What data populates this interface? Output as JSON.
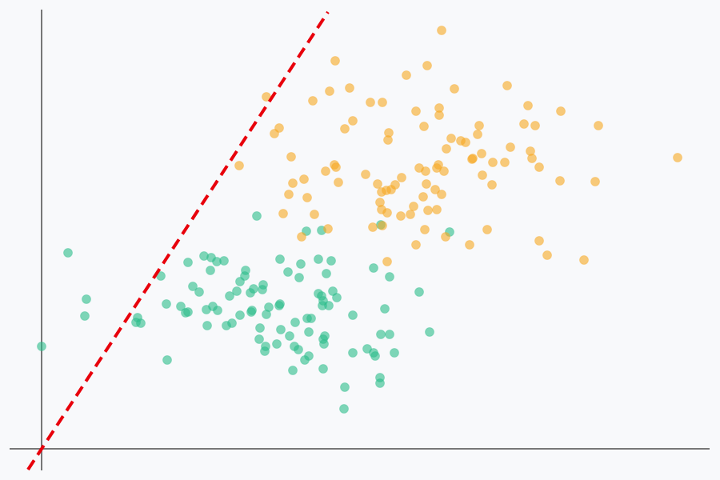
{
  "chart_data": {
    "type": "scatter",
    "xlim": [
      -40,
      835
    ],
    "ylim": [
      -27,
      549
    ],
    "series": [
      {
        "color": "#2bbd8a",
        "x": [
          0,
          33,
          56,
          54,
          120,
          118,
          124,
          157,
          149,
          156,
          174,
          180,
          183,
          183,
          189,
          197,
          203,
          212,
          219,
          228,
          211,
          206,
          214,
          220,
          207,
          231,
          238,
          235,
          244,
          248,
          254,
          255,
          261,
          265,
          276,
          277,
          262,
          263,
          248,
          269,
          273,
          272,
          280,
          279,
          284,
          281,
          297,
          298,
          298,
          294,
          299,
          308,
          310,
          316,
          321,
          322,
          324,
          317,
          314,
          329,
          334,
          334,
          332,
          337,
          331,
          350,
          346,
          356,
          362,
          346,
          350,
          351,
          352,
          359,
          364,
          369,
          354,
          353,
          352,
          352,
          389,
          379,
          378,
          389,
          407,
          415,
          417,
          424,
          435,
          441,
          423,
          423,
          415,
          435,
          429,
          424,
          472,
          485,
          510
        ],
        "values": [
          128,
          245,
          187,
          166,
          164,
          158,
          157,
          111,
          216,
          181,
          178,
          170,
          171,
          233,
          203,
          196,
          241,
          239,
          234,
          235,
          223,
          174,
          178,
          173,
          154,
          154,
          157,
          191,
          197,
          209,
          216,
          223,
          195,
          200,
          199,
          205,
          171,
          173,
          167,
          291,
          151,
          137,
          128,
          122,
          177,
          168,
          179,
          181,
          237,
          131,
          149,
          221,
          141,
          128,
          124,
          214,
          231,
          158,
          98,
          111,
          116,
          146,
          163,
          163,
          272,
          273,
          237,
          219,
          235,
          194,
          191,
          179,
          185,
          179,
          197,
          189,
          141,
          131,
          137,
          100,
          167,
          77,
          50,
          120,
          125,
          120,
          116,
          143,
          143,
          120,
          89,
          82,
          226,
          215,
          175,
          280,
          196,
          146,
          271
        ]
      },
      {
        "color": "#f7a823",
        "x": [
          500,
          482,
          367,
          456,
          360,
          385,
          339,
          281,
          411,
          426,
          468,
          497,
          497,
          516,
          582,
          608,
          649,
          603,
          617,
          696,
          795,
          389,
          379,
          297,
          291,
          434,
          433,
          478,
          547,
          545,
          512,
          524,
          530,
          506,
          550,
          586,
          611,
          613,
          622,
          579,
          564,
          538,
          551,
          563,
          648,
          692,
          247,
          312,
          366,
          368,
          355,
          405,
          328,
          314,
          371,
          309,
          332,
          420,
          425,
          431,
          437,
          442,
          450,
          472,
          480,
          494,
          496,
          503,
          481,
          492,
          500,
          477,
          465,
          461,
          449,
          432,
          425,
          423,
          494,
          483,
          341,
          302,
          358,
          325,
          414,
          426,
          479,
          505,
          468,
          535,
          557,
          432,
          622,
          632,
          678,
          539
        ],
        "values": [
          523,
          479,
          485,
          467,
          447,
          451,
          435,
          440,
          433,
          433,
          422,
          426,
          417,
          450,
          454,
          429,
          422,
          406,
          404,
          404,
          364,
          410,
          400,
          401,
          394,
          395,
          386,
          403,
          404,
          393,
          388,
          385,
          383,
          375,
          369,
          377,
          372,
          363,
          352,
          358,
          358,
          362,
          342,
          330,
          335,
          334,
          354,
          365,
          355,
          352,
          347,
          343,
          337,
          332,
          333,
          318,
          314,
          331,
          321,
          323,
          324,
          330,
          339,
          351,
          347,
          351,
          355,
          347,
          331,
          324,
          318,
          315,
          303,
          293,
          291,
          295,
          299,
          308,
          299,
          298,
          293,
          294,
          275,
          265,
          277,
          279,
          274,
          265,
          255,
          255,
          274,
          234,
          260,
          242,
          236,
          363
        ]
      }
    ],
    "reference_line": {
      "x": [
        -17,
        358
      ],
      "y": [
        -26,
        546
      ],
      "color": "#e8000b",
      "dashed": true
    }
  }
}
